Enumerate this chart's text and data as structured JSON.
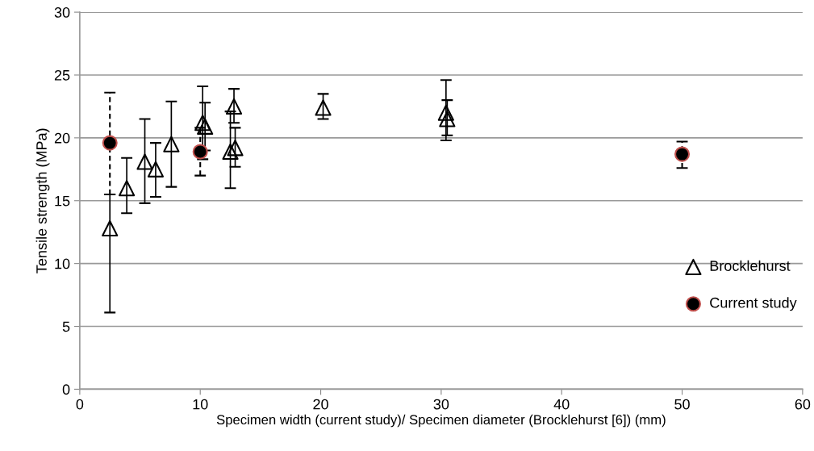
{
  "chart_data": {
    "type": "scatter",
    "xlabel": "Specimen width (current study)/ Specimen diameter (Brocklehurst [6]) (mm)",
    "ylabel": "Tensile strength (MPa)",
    "xlim": [
      0,
      60
    ],
    "xticks": [
      0,
      10,
      20,
      30,
      40,
      50,
      60
    ],
    "ylim": [
      0,
      30
    ],
    "yticks": [
      0,
      5,
      10,
      15,
      20,
      25,
      30
    ],
    "grid": "y",
    "legend": "right",
    "series": [
      {
        "name": "Brocklehurst",
        "color": "#000000",
        "marker": "triangle",
        "line_style": "solid",
        "x": [
          2.5,
          3.9,
          5.4,
          6.3,
          7.6,
          10.2,
          10.4,
          12.8,
          12.5,
          12.9,
          20.2,
          30.4,
          30.5
        ],
        "values": [
          12.8,
          16.0,
          18.1,
          17.5,
          19.5,
          21.2,
          20.9,
          22.5,
          18.9,
          19.2,
          22.4,
          22.0,
          21.5
        ],
        "errors": [
          [
            6.1,
            15.5
          ],
          [
            14.0,
            18.4
          ],
          [
            14.8,
            21.5
          ],
          [
            15.3,
            19.6
          ],
          [
            16.1,
            22.9
          ],
          [
            18.3,
            24.1
          ],
          [
            19.0,
            22.8
          ],
          [
            21.2,
            23.9
          ],
          [
            16.0,
            22.1
          ],
          [
            17.7,
            20.8
          ],
          [
            21.5,
            23.5
          ],
          [
            19.8,
            24.6
          ],
          [
            20.2,
            23.0
          ]
        ]
      },
      {
        "name": "Current study",
        "color": "#000000",
        "marker": "circle",
        "line_style": "dashed",
        "x": [
          2.5,
          10,
          50
        ],
        "values": [
          19.6,
          18.9,
          18.7
        ],
        "errors": [
          [
            15.5,
            23.6
          ],
          [
            17.0,
            20.8
          ],
          [
            17.6,
            19.7
          ]
        ]
      }
    ]
  }
}
